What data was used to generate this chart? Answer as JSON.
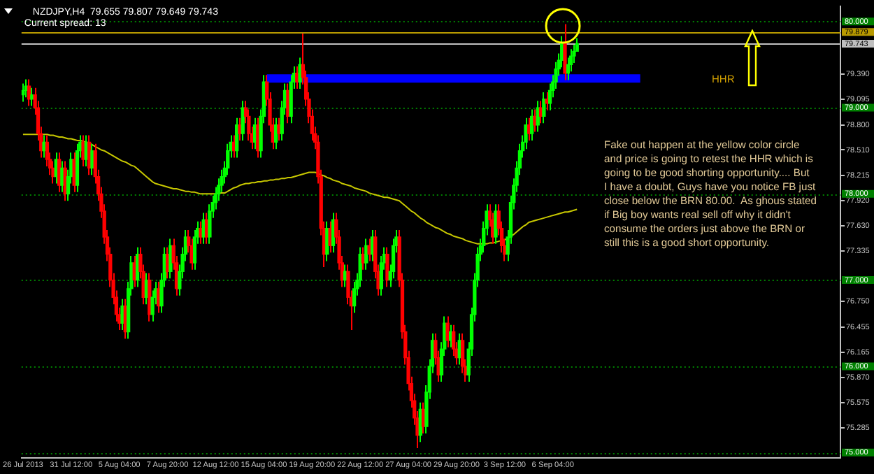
{
  "chart_data": {
    "type": "candlestick",
    "title": "NZDJPY,H4  79.655 79.807 79.649 79.743",
    "subtitle": "Current spread: 13",
    "annotations": [
      "HHR",
      "Fake out happen at the yellow color circle\nand price is going to retest the HHR which is\ngoing to be good shorting opportunity.... But\nI have a doubt, Guys have you notice FB just\nclose below the BRN 80.00.  As ghous stated\nif Big boy wants real sell off why it didn't\nconsume the orders just above the BRN or\nstill this is a good short opportunity."
    ],
    "categories": [
      "26 Jul 2013",
      null,
      null,
      null,
      null,
      null,
      null,
      null,
      null,
      null,
      null,
      null,
      null,
      null,
      null,
      null,
      "31 Jul 12:00",
      null,
      null,
      null,
      null,
      null,
      null,
      null,
      null,
      null,
      null,
      null,
      null,
      null,
      null,
      null,
      "5 Aug 04:00",
      null,
      null,
      null,
      null,
      null,
      null,
      null,
      null,
      null,
      null,
      null,
      null,
      null,
      null,
      null,
      "7 Aug 20:00",
      null,
      null,
      null,
      null,
      null,
      null,
      null,
      null,
      null,
      null,
      null,
      null,
      null,
      null,
      null,
      "12 Aug 12:00",
      null,
      null,
      null,
      null,
      null,
      null,
      null,
      null,
      null,
      null,
      null,
      null,
      null,
      null,
      null,
      "15 Aug 04:00",
      null,
      null,
      null,
      null,
      null,
      null,
      null,
      null,
      null,
      null,
      null,
      null,
      null,
      null,
      null,
      "19 Aug 20:00",
      null,
      null,
      null,
      null,
      null,
      null,
      null,
      null,
      null,
      null,
      null,
      null,
      null,
      null,
      null,
      "22 Aug 12:00",
      null,
      null,
      null,
      null,
      null,
      null,
      null,
      null,
      null,
      null,
      null,
      null,
      null,
      null,
      null,
      "27 Aug 04:00",
      null,
      null,
      null,
      null,
      null,
      null,
      null,
      null,
      null,
      null,
      null,
      null,
      null,
      null,
      null,
      "29 Aug 20:00",
      null,
      null,
      null,
      null,
      null,
      null,
      null,
      null,
      null,
      null,
      null,
      null,
      null,
      null,
      null,
      "3 Sep 12:00",
      null,
      null,
      null,
      null,
      null,
      null,
      null,
      null,
      null,
      null,
      null,
      null,
      null,
      null,
      null,
      "6 Sep 04:00",
      null,
      null,
      null,
      null,
      null,
      null,
      null,
      null,
      null,
      null,
      null,
      null,
      null,
      null,
      null,
      null,
      null,
      null,
      null,
      null,
      null,
      null,
      null,
      null,
      null,
      null,
      null,
      null,
      null,
      null,
      null,
      null,
      null,
      null,
      null,
      null,
      null,
      null,
      null,
      null,
      null,
      null,
      null,
      null,
      null,
      null,
      null,
      null,
      null,
      null,
      null,
      null,
      null,
      null,
      null,
      null,
      null,
      null,
      null,
      null,
      null,
      null,
      null,
      null,
      null,
      null,
      null,
      null,
      null,
      null,
      null,
      null,
      null,
      null,
      null,
      null,
      null,
      null,
      null,
      null,
      null,
      null,
      null,
      null,
      null,
      null,
      null,
      null,
      null,
      null,
      null,
      null,
      null,
      null,
      null
    ],
    "ohlc": [
      [
        79.15,
        79.28,
        79.07,
        79.2
      ],
      [
        79.2,
        79.33,
        79.12,
        79.25
      ],
      [
        79.25,
        79.33,
        79.02,
        79.1
      ],
      [
        79.1,
        79.23,
        79.02,
        79.15
      ],
      [
        79.15,
        79.23,
        78.92,
        79.0
      ],
      [
        79.0,
        79.08,
        78.62,
        78.7
      ],
      [
        78.7,
        78.78,
        78.42,
        78.5
      ],
      [
        78.5,
        78.68,
        78.42,
        78.6
      ],
      [
        78.6,
        78.68,
        78.32,
        78.4
      ],
      [
        78.4,
        78.48,
        78.22,
        78.3
      ],
      [
        78.3,
        78.38,
        78.12,
        78.2
      ],
      [
        78.2,
        78.48,
        78.12,
        78.4
      ],
      [
        78.4,
        78.48,
        78.02,
        78.1
      ],
      [
        78.1,
        78.38,
        78.02,
        78.3
      ],
      [
        78.3,
        78.38,
        77.92,
        78.0
      ],
      [
        78.0,
        78.28,
        77.92,
        78.2
      ],
      [
        78.2,
        78.48,
        78.12,
        78.4
      ],
      [
        78.4,
        78.48,
        78.02,
        78.1
      ],
      [
        78.1,
        78.58,
        78.02,
        78.5
      ],
      [
        78.5,
        78.68,
        78.42,
        78.6
      ],
      [
        78.6,
        78.68,
        78.32,
        78.4
      ],
      [
        78.4,
        78.68,
        78.32,
        78.6
      ],
      [
        78.6,
        78.68,
        78.22,
        78.3
      ],
      [
        78.3,
        78.58,
        78.22,
        78.5
      ],
      [
        78.5,
        78.58,
        78.12,
        78.2
      ],
      [
        78.2,
        78.28,
        77.92,
        78.0
      ],
      [
        78.0,
        78.08,
        77.72,
        77.8
      ],
      [
        77.8,
        77.88,
        77.42,
        77.5
      ],
      [
        77.5,
        77.58,
        77.22,
        77.3
      ],
      [
        77.3,
        77.38,
        76.92,
        77.0
      ],
      [
        77.0,
        77.08,
        76.72,
        76.8
      ],
      [
        76.8,
        76.88,
        76.52,
        76.6
      ],
      [
        76.6,
        76.68,
        76.42,
        76.5
      ],
      [
        76.5,
        76.78,
        76.42,
        76.7
      ],
      [
        76.7,
        76.78,
        76.32,
        76.4
      ],
      [
        76.4,
        76.98,
        76.32,
        76.9
      ],
      [
        76.9,
        77.28,
        76.82,
        77.2
      ],
      [
        77.2,
        77.28,
        76.92,
        77.0
      ],
      [
        77.0,
        77.38,
        76.92,
        77.3
      ],
      [
        77.3,
        77.38,
        77.02,
        77.1
      ],
      [
        77.1,
        77.18,
        76.72,
        76.8
      ],
      [
        76.8,
        77.08,
        76.72,
        77.0
      ],
      [
        77.0,
        77.08,
        76.52,
        76.6
      ],
      [
        76.6,
        76.88,
        76.52,
        76.8
      ],
      [
        76.8,
        76.98,
        76.72,
        76.9
      ],
      [
        76.9,
        76.98,
        76.62,
        76.7
      ],
      [
        76.7,
        77.08,
        76.62,
        77.0
      ],
      [
        77.0,
        77.38,
        76.92,
        77.3
      ],
      [
        77.3,
        77.38,
        77.02,
        77.1
      ],
      [
        77.1,
        77.48,
        77.02,
        77.4
      ],
      [
        77.4,
        77.48,
        77.12,
        77.2
      ],
      [
        77.2,
        77.28,
        76.82,
        76.9
      ],
      [
        76.9,
        77.18,
        76.82,
        77.1
      ],
      [
        77.1,
        77.38,
        77.02,
        77.3
      ],
      [
        77.3,
        77.58,
        77.22,
        77.5
      ],
      [
        77.5,
        77.58,
        77.32,
        77.4
      ],
      [
        77.4,
        77.48,
        77.12,
        77.2
      ],
      [
        77.2,
        77.58,
        77.12,
        77.5
      ],
      [
        77.5,
        77.68,
        77.42,
        77.6
      ],
      [
        77.6,
        77.68,
        77.42,
        77.5
      ],
      [
        77.5,
        77.78,
        77.42,
        77.7
      ],
      [
        77.7,
        77.78,
        77.42,
        77.5
      ],
      [
        77.5,
        77.88,
        77.42,
        77.8
      ],
      [
        77.8,
        77.98,
        77.72,
        77.9
      ],
      [
        77.9,
        78.08,
        77.82,
        78.0
      ],
      [
        78.0,
        78.18,
        77.92,
        78.1
      ],
      [
        78.1,
        78.28,
        78.02,
        78.2
      ],
      [
        78.2,
        78.38,
        78.12,
        78.3
      ],
      [
        78.3,
        78.58,
        78.22,
        78.5
      ],
      [
        78.5,
        78.68,
        78.42,
        78.6
      ],
      [
        78.6,
        78.68,
        78.42,
        78.5
      ],
      [
        78.5,
        78.88,
        78.42,
        78.8
      ],
      [
        78.8,
        78.88,
        78.62,
        78.7
      ],
      [
        78.7,
        79.08,
        78.62,
        79.0
      ],
      [
        79.0,
        79.08,
        78.82,
        78.9
      ],
      [
        78.9,
        78.98,
        78.62,
        78.7
      ],
      [
        78.7,
        78.78,
        78.52,
        78.6
      ],
      [
        78.6,
        78.88,
        78.52,
        78.8
      ],
      [
        78.8,
        78.88,
        78.42,
        78.5
      ],
      [
        78.5,
        78.98,
        78.42,
        78.9
      ],
      [
        78.9,
        79.38,
        78.82,
        79.3
      ],
      [
        79.3,
        79.38,
        79.02,
        79.1
      ],
      [
        79.1,
        79.18,
        78.72,
        78.8
      ],
      [
        78.8,
        78.88,
        78.52,
        78.6
      ],
      [
        78.6,
        78.88,
        78.52,
        78.8
      ],
      [
        78.8,
        78.88,
        78.62,
        78.7
      ],
      [
        78.7,
        79.08,
        78.62,
        79.0
      ],
      [
        79.0,
        79.28,
        78.92,
        79.2
      ],
      [
        79.2,
        79.28,
        78.82,
        78.9
      ],
      [
        78.9,
        79.38,
        78.82,
        79.3
      ],
      [
        79.3,
        79.48,
        79.22,
        79.4
      ],
      [
        79.4,
        79.48,
        79.22,
        79.3
      ],
      [
        79.3,
        79.58,
        79.22,
        79.5
      ],
      [
        79.5,
        79.86,
        79.27,
        79.35
      ],
      [
        79.35,
        79.43,
        79.02,
        79.1
      ],
      [
        79.1,
        79.18,
        78.82,
        78.9
      ],
      [
        78.9,
        78.98,
        78.62,
        78.7
      ],
      [
        78.7,
        78.78,
        78.52,
        78.6
      ],
      [
        78.6,
        78.68,
        78.12,
        78.2
      ],
      [
        78.2,
        78.28,
        77.52,
        77.6
      ],
      [
        77.6,
        77.68,
        77.15,
        77.3
      ],
      [
        77.3,
        77.68,
        77.22,
        77.6
      ],
      [
        77.6,
        77.68,
        77.32,
        77.4
      ],
      [
        77.4,
        77.78,
        77.32,
        77.7
      ],
      [
        77.7,
        77.78,
        77.42,
        77.5
      ],
      [
        77.5,
        77.58,
        77.12,
        77.2
      ],
      [
        77.2,
        77.28,
        76.92,
        77.0
      ],
      [
        77.0,
        77.18,
        76.92,
        77.1
      ],
      [
        77.1,
        77.18,
        76.72,
        76.8
      ],
      [
        76.8,
        76.88,
        76.42,
        76.7
      ],
      [
        76.7,
        76.98,
        76.62,
        76.9
      ],
      [
        76.9,
        77.08,
        76.82,
        77.0
      ],
      [
        77.0,
        77.38,
        76.92,
        77.3
      ],
      [
        77.3,
        77.38,
        77.12,
        77.2
      ],
      [
        77.2,
        77.48,
        77.12,
        77.4
      ],
      [
        77.4,
        77.48,
        77.22,
        77.3
      ],
      [
        77.3,
        77.58,
        77.22,
        77.5
      ],
      [
        77.5,
        77.58,
        77.02,
        77.1
      ],
      [
        77.1,
        77.18,
        76.82,
        76.9
      ],
      [
        76.9,
        77.28,
        76.82,
        77.2
      ],
      [
        77.2,
        77.38,
        77.12,
        77.3
      ],
      [
        77.3,
        77.38,
        76.92,
        77.0
      ],
      [
        77.0,
        77.18,
        76.92,
        77.1
      ],
      [
        77.1,
        77.48,
        77.02,
        77.4
      ],
      [
        77.4,
        77.58,
        77.32,
        77.5
      ],
      [
        77.5,
        77.58,
        76.92,
        77.0
      ],
      [
        77.0,
        77.08,
        76.32,
        76.4
      ],
      [
        76.4,
        76.48,
        76.02,
        76.1
      ],
      [
        76.1,
        76.18,
        75.72,
        75.8
      ],
      [
        75.8,
        75.88,
        75.52,
        75.6
      ],
      [
        75.6,
        75.68,
        75.32,
        75.4
      ],
      [
        75.4,
        75.48,
        75.05,
        75.2
      ],
      [
        75.2,
        75.58,
        75.12,
        75.5
      ],
      [
        75.5,
        75.58,
        75.22,
        75.3
      ],
      [
        75.3,
        75.78,
        75.22,
        75.7
      ],
      [
        75.7,
        76.08,
        75.62,
        76.0
      ],
      [
        76.0,
        76.38,
        75.92,
        76.3
      ],
      [
        76.3,
        76.38,
        76.02,
        76.1
      ],
      [
        76.1,
        76.18,
        75.82,
        75.9
      ],
      [
        75.9,
        76.28,
        75.82,
        76.2
      ],
      [
        76.2,
        76.58,
        76.12,
        76.5
      ],
      [
        76.5,
        76.58,
        76.22,
        76.3
      ],
      [
        76.3,
        76.48,
        76.22,
        76.4
      ],
      [
        76.4,
        76.48,
        76.12,
        76.2
      ],
      [
        76.2,
        76.28,
        76.02,
        76.1
      ],
      [
        76.1,
        76.38,
        76.02,
        76.3
      ],
      [
        76.3,
        76.38,
        75.92,
        76.0
      ],
      [
        76.0,
        76.08,
        75.82,
        75.9
      ],
      [
        75.9,
        76.28,
        75.82,
        76.2
      ],
      [
        76.2,
        76.68,
        76.12,
        76.6
      ],
      [
        76.6,
        77.08,
        76.52,
        77.0
      ],
      [
        77.0,
        77.38,
        76.92,
        77.3
      ],
      [
        77.3,
        77.48,
        77.22,
        77.4
      ],
      [
        77.4,
        77.68,
        77.32,
        77.6
      ],
      [
        77.6,
        77.88,
        77.52,
        77.8
      ],
      [
        77.8,
        77.88,
        77.62,
        77.7
      ],
      [
        77.7,
        77.78,
        77.42,
        77.5
      ],
      [
        77.5,
        77.88,
        77.42,
        77.8
      ],
      [
        77.8,
        77.88,
        77.52,
        77.6
      ],
      [
        77.6,
        77.68,
        77.32,
        77.4
      ],
      [
        77.4,
        77.48,
        77.22,
        77.3
      ],
      [
        77.3,
        77.58,
        77.22,
        77.5
      ],
      [
        77.5,
        77.98,
        77.42,
        77.9
      ],
      [
        77.9,
        78.18,
        77.82,
        78.1
      ],
      [
        78.1,
        78.38,
        78.02,
        78.3
      ],
      [
        78.3,
        78.58,
        78.22,
        78.5
      ],
      [
        78.5,
        78.68,
        78.42,
        78.6
      ],
      [
        78.6,
        78.88,
        78.52,
        78.8
      ],
      [
        78.8,
        78.88,
        78.62,
        78.7
      ],
      [
        78.7,
        78.98,
        78.62,
        78.9
      ],
      [
        78.9,
        78.98,
        78.72,
        78.8
      ],
      [
        78.8,
        79.08,
        78.72,
        79.0
      ],
      [
        79.0,
        79.08,
        78.82,
        78.9
      ],
      [
        78.9,
        79.18,
        78.82,
        79.1
      ],
      [
        79.1,
        79.18,
        78.97,
        79.05
      ],
      [
        79.05,
        79.28,
        78.97,
        79.2
      ],
      [
        79.2,
        79.38,
        79.12,
        79.3
      ],
      [
        79.3,
        79.53,
        79.22,
        79.45
      ],
      [
        79.45,
        79.63,
        79.37,
        79.55
      ],
      [
        79.55,
        79.83,
        79.47,
        79.75
      ],
      [
        79.75,
        79.97,
        79.32,
        79.4
      ],
      [
        79.4,
        79.58,
        79.32,
        79.5
      ],
      [
        79.5,
        79.68,
        79.42,
        79.6
      ],
      [
        79.6,
        79.73,
        79.52,
        79.655
      ],
      [
        79.655,
        79.807,
        79.649,
        79.743
      ],
      null,
      null,
      null,
      null,
      null,
      null,
      null,
      null,
      null,
      null,
      null,
      null,
      null,
      null,
      null,
      null,
      null,
      null,
      null,
      null,
      null,
      null,
      null,
      null,
      null,
      null,
      null,
      null,
      null,
      null,
      null,
      null,
      null,
      null,
      null,
      null,
      null,
      null,
      null,
      null,
      null,
      null,
      null,
      null,
      null,
      null,
      null,
      null,
      null,
      null,
      null,
      null,
      null,
      null,
      null,
      null,
      null,
      null,
      null,
      null,
      null,
      null,
      null,
      null,
      null,
      null,
      null,
      null,
      null,
      null,
      null,
      null,
      null,
      null,
      null,
      null,
      null,
      null,
      null,
      null,
      null,
      null,
      null,
      null,
      null,
      null,
      null
    ],
    "colors": [
      "#00ff00",
      "#00ff00",
      "#ff0000",
      "#00ff00",
      "#ff0000",
      "#ff0000",
      "#ff0000",
      "#00ff00",
      "#ff0000",
      "#ff0000",
      "#ff0000",
      "#00ff00",
      "#ff0000",
      "#00ff00",
      "#ff0000",
      "#00ff00",
      "#00ff00",
      "#ff0000",
      "#00ff00",
      "#00ff00",
      "#ff0000",
      "#00ff00",
      "#ff0000",
      "#00ff00",
      "#ff0000",
      "#ff0000",
      "#ff0000",
      "#ff0000",
      "#ff0000",
      "#ff0000",
      "#ff0000",
      "#ff0000",
      "#ff0000",
      "#00ff00",
      "#ff0000",
      "#00ff00",
      "#00ff00",
      "#ff0000",
      "#00ff00",
      "#ff0000",
      "#ff0000",
      "#00ff00",
      "#ff0000",
      "#00ff00",
      "#00ff00",
      "#ff0000",
      "#00ff00",
      "#00ff00",
      "#ff0000",
      "#00ff00",
      "#ff0000",
      "#ff0000",
      "#00ff00",
      "#00ff00",
      "#00ff00",
      "#ff0000",
      "#ff0000",
      "#00ff00",
      "#00ff00",
      "#ff0000",
      "#00ff00",
      "#ff0000",
      "#00ff00",
      "#00ff00",
      "#00ff00",
      "#00ff00",
      "#00ff00",
      "#00ff00",
      "#00ff00",
      "#00ff00",
      "#ff0000",
      "#00ff00",
      "#ff0000",
      "#00ff00",
      "#ff0000",
      "#ff0000",
      "#ff0000",
      "#00ff00",
      "#ff0000",
      "#00ff00",
      "#00ff00",
      "#ff0000",
      "#ff0000",
      "#ff0000",
      "#00ff00",
      "#ff0000",
      "#00ff00",
      "#00ff00",
      "#ff0000",
      "#00ff00",
      "#00ff00",
      "#ff0000",
      "#00ff00",
      "#ff0000",
      "#ff0000",
      "#ff0000",
      "#ff0000",
      "#ff0000",
      "#ff0000",
      "#ff0000",
      "#ff0000",
      "#00ff00",
      "#ff0000",
      "#00ff00",
      "#ff0000",
      "#ff0000",
      "#ff0000",
      "#00ff00",
      "#ff0000",
      "#ff0000",
      "#00ff00",
      "#00ff00",
      "#00ff00",
      "#ff0000",
      "#00ff00",
      "#ff0000",
      "#00ff00",
      "#ff0000",
      "#ff0000",
      "#00ff00",
      "#00ff00",
      "#ff0000",
      "#00ff00",
      "#00ff00",
      "#00ff00",
      "#ff0000",
      "#ff0000",
      "#ff0000",
      "#ff0000",
      "#ff0000",
      "#ff0000",
      "#ff0000",
      "#00ff00",
      "#ff0000",
      "#00ff00",
      "#00ff00",
      "#00ff00",
      "#ff0000",
      "#ff0000",
      "#00ff00",
      "#00ff00",
      "#ff0000",
      "#00ff00",
      "#ff0000",
      "#ff0000",
      "#00ff00",
      "#ff0000",
      "#ff0000",
      "#00ff00",
      "#00ff00",
      "#00ff00",
      "#00ff00",
      "#00ff00",
      "#00ff00",
      "#00ff00",
      "#ff0000",
      "#ff0000",
      "#00ff00",
      "#ff0000",
      "#ff0000",
      "#ff0000",
      "#00ff00",
      "#00ff00",
      "#00ff00",
      "#00ff00",
      "#00ff00",
      "#00ff00",
      "#00ff00",
      "#ff0000",
      "#00ff00",
      "#ff0000",
      "#00ff00",
      "#ff0000",
      "#00ff00",
      "#ff0000",
      "#00ff00",
      "#00ff00",
      "#00ff00",
      "#00ff00",
      "#00ff00",
      "#ff0000",
      "#00ff00",
      "#00ff00",
      "#00ff00",
      "#00ff00",
      null,
      null,
      null,
      null,
      null,
      null,
      null,
      null,
      null,
      null,
      null,
      null,
      null,
      null,
      null,
      null,
      null,
      null,
      null,
      null,
      null,
      null,
      null,
      null,
      null,
      null,
      null,
      null,
      null,
      null,
      null,
      null,
      null,
      null,
      null,
      null,
      null,
      null,
      null,
      null,
      null,
      null,
      null,
      null,
      null,
      null,
      null,
      null,
      null,
      null,
      null,
      null,
      null,
      null,
      null,
      null,
      null,
      null,
      null,
      null,
      null,
      null,
      null,
      null,
      null,
      null,
      null,
      null,
      null,
      null,
      null,
      null,
      null,
      null,
      null,
      null,
      null,
      null,
      null,
      null,
      null,
      null,
      null,
      null,
      null,
      null,
      null
    ],
    "series": [
      {
        "type": "line",
        "color": "#c8c800",
        "values": [
          78.69,
          78.69,
          78.69,
          78.69,
          78.69,
          78.69,
          78.69,
          78.69,
          78.69,
          78.68,
          78.68,
          78.67,
          78.66,
          78.66,
          78.65,
          78.64,
          78.64,
          78.63,
          78.62,
          78.62,
          78.61,
          78.6,
          78.59,
          78.57,
          78.55,
          78.53,
          78.51,
          78.5,
          78.48,
          78.46,
          78.44,
          78.42,
          78.4,
          78.38,
          78.37,
          78.35,
          78.33,
          78.32,
          78.29,
          78.26,
          78.23,
          78.2,
          78.17,
          78.14,
          78.12,
          78.11,
          78.1,
          78.09,
          78.08,
          78.07,
          78.06,
          78.06,
          78.05,
          78.04,
          78.03,
          78.03,
          78.02,
          78.02,
          78.01,
          78.0,
          78.0,
          78.0,
          78.0,
          78.0,
          78.0,
          78.01,
          78.01,
          78.01,
          78.03,
          78.05,
          78.07,
          78.08,
          78.1,
          78.11,
          78.12,
          78.12,
          78.13,
          78.13,
          78.14,
          78.14,
          78.15,
          78.15,
          78.16,
          78.16,
          78.17,
          78.17,
          78.18,
          78.18,
          78.19,
          78.19,
          78.2,
          78.21,
          78.22,
          78.23,
          78.24,
          78.25,
          78.25,
          78.25,
          78.24,
          78.22,
          78.21,
          78.19,
          78.18,
          78.16,
          78.15,
          78.14,
          78.12,
          78.11,
          78.1,
          78.09,
          78.07,
          78.06,
          78.05,
          78.04,
          78.03,
          78.01,
          78.0,
          77.99,
          77.98,
          77.97,
          77.96,
          77.96,
          77.95,
          77.94,
          77.93,
          77.92,
          77.89,
          77.86,
          77.83,
          77.8,
          77.78,
          77.75,
          77.72,
          77.7,
          77.67,
          77.65,
          77.63,
          77.61,
          77.6,
          77.58,
          77.56,
          77.54,
          77.53,
          77.51,
          77.5,
          77.49,
          77.48,
          77.46,
          77.45,
          77.44,
          77.43,
          77.42,
          77.42,
          77.42,
          77.42,
          77.43,
          77.43,
          77.44,
          77.45,
          77.46,
          77.47,
          77.48,
          77.51,
          77.53,
          77.56,
          77.59,
          77.62,
          77.64,
          77.67,
          77.68,
          77.69,
          77.7,
          77.71,
          77.72,
          77.73,
          77.74,
          77.75,
          77.76,
          77.77,
          77.78,
          77.79,
          77.79,
          77.8,
          77.81,
          77.82,
          null,
          null,
          null,
          null,
          null,
          null,
          null,
          null,
          null,
          null,
          null,
          null,
          null,
          null,
          null,
          null,
          null,
          null,
          null,
          null,
          null,
          null,
          null,
          null,
          null,
          null,
          null,
          null,
          null,
          null,
          null,
          null,
          null,
          null,
          null,
          null,
          null,
          null,
          null,
          null,
          null,
          null,
          null,
          null,
          null,
          null,
          null,
          null,
          null,
          null,
          null,
          null,
          null,
          null,
          null,
          null,
          null,
          null,
          null,
          null,
          null,
          null,
          null,
          null,
          null,
          null,
          null,
          null,
          null,
          null,
          null,
          null,
          null,
          null,
          null,
          null,
          null,
          null,
          null,
          null,
          null,
          null,
          null,
          null,
          null,
          null,
          null
        ]
      },
      {
        "type": "line",
        "color": "#0000ff",
        "values": [
          null,
          null,
          null,
          null,
          null,
          null,
          null,
          null,
          null,
          null,
          null,
          null,
          null,
          null,
          null,
          null,
          null,
          null,
          null,
          null,
          null,
          null,
          null,
          null,
          null,
          null,
          null,
          null,
          null,
          null,
          null,
          null,
          null,
          null,
          null,
          null,
          null,
          null,
          null,
          null,
          null,
          null,
          null,
          null,
          null,
          null,
          null,
          null,
          null,
          null,
          null,
          null,
          null,
          null,
          null,
          null,
          null,
          null,
          null,
          null,
          null,
          null,
          null,
          null,
          null,
          null,
          null,
          null,
          null,
          null,
          null,
          null,
          null,
          null,
          null,
          null,
          null,
          null,
          null,
          null,
          null,
          79.34,
          79.34,
          79.34,
          79.34,
          79.34,
          79.34,
          79.34,
          79.34,
          79.34,
          79.34,
          79.34,
          79.34,
          79.34,
          79.34,
          79.34,
          79.34,
          79.34,
          79.34,
          79.34,
          79.34,
          79.34,
          79.34,
          79.34,
          79.34,
          79.34,
          79.34,
          79.34,
          79.34,
          79.34,
          79.34,
          79.34,
          79.34,
          79.34,
          79.34,
          79.34,
          79.34,
          79.34,
          79.34,
          79.34,
          79.34,
          79.34,
          79.34,
          79.34,
          79.34,
          79.34,
          79.34,
          79.34,
          79.34,
          79.34,
          79.34,
          79.34,
          79.34,
          79.34,
          79.34,
          79.34,
          79.34,
          79.34,
          79.34,
          79.34,
          79.34,
          79.34,
          79.34,
          79.34,
          79.34,
          79.34,
          79.34,
          79.34,
          79.34,
          79.34,
          79.34,
          79.34,
          79.34,
          79.34,
          79.34,
          79.34,
          79.34,
          79.34,
          79.34,
          79.34,
          79.34,
          79.34,
          79.34,
          79.34,
          79.34,
          79.34,
          79.34,
          79.34,
          79.34,
          79.34,
          79.34,
          79.34,
          79.34,
          79.34,
          79.34,
          79.34,
          79.34,
          79.34,
          79.34,
          79.34,
          79.34,
          79.34,
          79.34,
          79.34,
          79.34,
          79.34,
          79.34,
          79.34,
          79.34,
          79.34,
          79.34,
          79.34,
          79.34,
          79.34,
          79.34,
          79.34,
          79.34,
          79.34,
          79.34,
          79.34,
          79.34,
          79.34,
          79.34,
          79.34,
          79.34,
          79.34,
          null,
          null,
          null,
          null,
          null,
          null,
          null,
          null,
          null,
          null,
          null,
          null,
          null,
          null,
          null,
          null,
          null,
          null,
          null,
          null,
          null,
          null,
          null,
          null,
          null,
          null,
          null,
          null,
          null,
          null,
          null,
          null,
          null,
          null,
          null,
          null,
          null,
          null,
          null,
          null,
          null,
          null,
          null,
          null,
          null,
          null,
          null,
          null,
          null,
          null,
          null,
          null,
          null,
          null,
          null,
          null,
          null,
          null,
          null,
          null,
          null,
          null,
          null,
          null,
          null,
          null
        ]
      }
    ],
    "ylim": [
      74.94,
      80.18
    ],
    "yticks": [
      {
        "value": 79.39,
        "label": "79.390"
      },
      {
        "value": 79.095,
        "label": "79.095"
      },
      {
        "value": 78.8,
        "label": "78.800"
      },
      {
        "value": 78.51,
        "label": "78.510"
      },
      {
        "value": 78.215,
        "label": "78.215"
      },
      {
        "value": 77.92,
        "label": "77.920"
      },
      {
        "value": 77.63,
        "label": "77.630"
      },
      {
        "value": 77.335,
        "label": "77.335"
      },
      {
        "value": 76.75,
        "label": "76.750"
      },
      {
        "value": 76.455,
        "label": "76.455"
      },
      {
        "value": 76.165,
        "label": "76.165"
      },
      {
        "value": 75.87,
        "label": "75.870"
      },
      {
        "value": 75.575,
        "label": "75.575"
      },
      {
        "value": 75.285,
        "label": "75.285"
      }
    ],
    "ref_lines": [
      {
        "axis": "y",
        "value": 80,
        "label": "80.000",
        "color": "#008000",
        "line_style": "dotted"
      },
      {
        "axis": "y",
        "value": 79,
        "label": "79.000",
        "color": "#008000",
        "line_style": "dotted"
      },
      {
        "axis": "y",
        "value": 78,
        "label": "78.000",
        "color": "#008000",
        "line_style": "dotted"
      },
      {
        "axis": "y",
        "value": 77,
        "label": "77.000",
        "color": "#008000",
        "line_style": "dotted"
      },
      {
        "axis": "y",
        "value": 76,
        "label": "76.000",
        "color": "#008000",
        "line_style": "dotted"
      },
      {
        "axis": "y",
        "value": 75,
        "label": "75.000",
        "color": "#008000",
        "line_style": "dotted"
      },
      {
        "axis": "y",
        "value": 79.879,
        "label": "79.879",
        "color": "#b89a00",
        "line_style": "solid"
      },
      {
        "axis": "y",
        "value": 79.743,
        "label": "79.743",
        "color": "#c0c0c0",
        "line_style": "solid"
      }
    ]
  }
}
